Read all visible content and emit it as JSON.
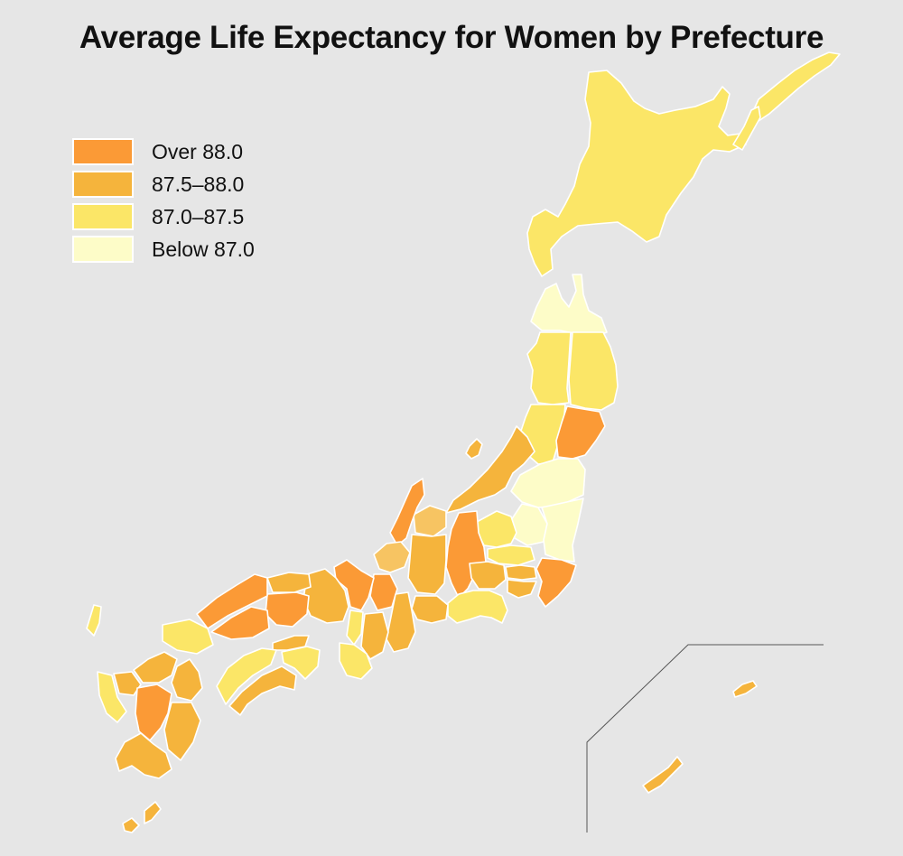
{
  "title": "Average Life Expectancy for Women by Prefecture",
  "legend": [
    {
      "label": "Over 88.0",
      "color": "#fb9a36"
    },
    {
      "label": "87.5–88.0",
      "color": "#f5b43c"
    },
    {
      "label": "87.0–87.5",
      "color": "#fbe667"
    },
    {
      "label": "Below 87.0",
      "color": "#fdfcc8"
    }
  ],
  "colors": {
    "background": "#e6e6e6",
    "border": "#ffffff",
    "over_88": "#fb9a36",
    "range_875_88": "#f5b43c",
    "range_87_875": "#fbe667",
    "below_87": "#fdfcc8",
    "light_orange": "#f7c462"
  },
  "regions": [
    {
      "name": "Hokkaido",
      "class": "87.0–87.5"
    },
    {
      "name": "Aomori",
      "class": "Below 87.0"
    },
    {
      "name": "Akita",
      "class": "87.0–87.5"
    },
    {
      "name": "Iwate",
      "class": "87.0–87.5"
    },
    {
      "name": "Yamagata",
      "class": "87.0–87.5"
    },
    {
      "name": "Miyagi",
      "class": "Over 88.0"
    },
    {
      "name": "Fukushima",
      "class": "Below 87.0"
    },
    {
      "name": "Ibaraki",
      "class": "Below 87.0"
    },
    {
      "name": "Tochigi",
      "class": "Below 87.0"
    },
    {
      "name": "Gunma",
      "class": "87.0–87.5"
    },
    {
      "name": "Saitama",
      "class": "87.0–87.5"
    },
    {
      "name": "Chiba",
      "class": "Over 88.0"
    },
    {
      "name": "Tokyo",
      "class": "87.5–88.0"
    },
    {
      "name": "Kanagawa",
      "class": "87.5–88.0"
    },
    {
      "name": "Niigata",
      "class": "87.5–88.0"
    },
    {
      "name": "Toyama",
      "class": "87.5–88.0"
    },
    {
      "name": "Ishikawa",
      "class": "Over 88.0"
    },
    {
      "name": "Fukui",
      "class": "87.5–88.0"
    },
    {
      "name": "Nagano",
      "class": "Over 88.0"
    },
    {
      "name": "Yamanashi",
      "class": "87.5–88.0"
    },
    {
      "name": "Gifu",
      "class": "87.5–88.0"
    },
    {
      "name": "Shizuoka",
      "class": "87.0–87.5"
    },
    {
      "name": "Aichi",
      "class": "87.5–88.0"
    },
    {
      "name": "Mie",
      "class": "87.5–88.0"
    },
    {
      "name": "Shiga",
      "class": "Over 88.0"
    },
    {
      "name": "Kyoto",
      "class": "Over 88.0"
    },
    {
      "name": "Osaka",
      "class": "87.0–87.5"
    },
    {
      "name": "Hyogo",
      "class": "87.5–88.0"
    },
    {
      "name": "Nara",
      "class": "87.5–88.0"
    },
    {
      "name": "Wakayama",
      "class": "87.0–87.5"
    },
    {
      "name": "Tottori",
      "class": "87.5–88.0"
    },
    {
      "name": "Shimane",
      "class": "Over 88.0"
    },
    {
      "name": "Okayama",
      "class": "Over 88.0"
    },
    {
      "name": "Hiroshima",
      "class": "Over 88.0"
    },
    {
      "name": "Yamaguchi",
      "class": "87.0–87.5"
    },
    {
      "name": "Tokushima",
      "class": "87.0–87.5"
    },
    {
      "name": "Kagawa",
      "class": "87.5–88.0"
    },
    {
      "name": "Ehime",
      "class": "87.0–87.5"
    },
    {
      "name": "Kochi",
      "class": "87.5–88.0"
    },
    {
      "name": "Fukuoka",
      "class": "87.5–88.0"
    },
    {
      "name": "Saga",
      "class": "87.5–88.0"
    },
    {
      "name": "Nagasaki",
      "class": "87.0–87.5"
    },
    {
      "name": "Kumamoto",
      "class": "Over 88.0"
    },
    {
      "name": "Oita",
      "class": "87.5–88.0"
    },
    {
      "name": "Miyazaki",
      "class": "87.5–88.0"
    },
    {
      "name": "Kagoshima",
      "class": "87.5–88.0"
    },
    {
      "name": "Okinawa",
      "class": "87.5–88.0"
    }
  ]
}
